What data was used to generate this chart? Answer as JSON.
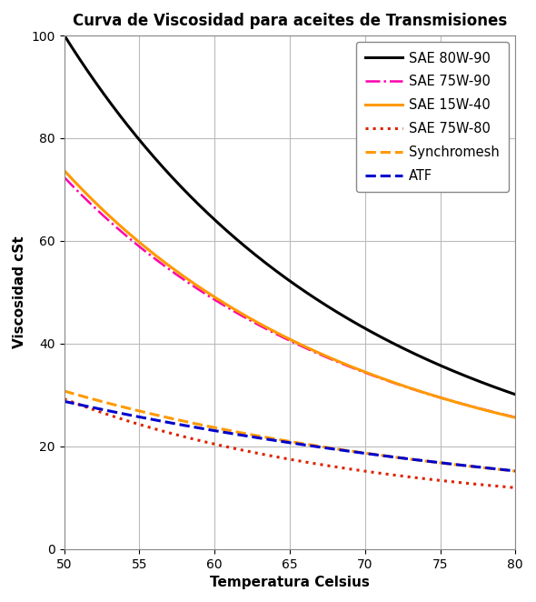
{
  "title": "Curva de Viscosidad para aceites de Transmisiones",
  "xlabel": "Temperatura Celsius",
  "ylabel": "Viscosidad cSt",
  "xlim": [
    50,
    80
  ],
  "ylim": [
    0,
    100
  ],
  "xticks": [
    50,
    55,
    60,
    65,
    70,
    75,
    80
  ],
  "yticks": [
    0,
    20,
    40,
    60,
    80,
    100
  ],
  "temp": [
    50,
    55,
    60,
    65,
    70,
    75,
    80
  ],
  "series": [
    {
      "label": "SAE 80W-90",
      "color": "#000000",
      "linestyle": "solid",
      "linewidth": 2.2,
      "values": [
        100,
        80,
        64,
        52,
        43,
        36,
        30
      ]
    },
    {
      "label": "SAE 75W-90",
      "color": "#ff00aa",
      "linestyle": "dashdot",
      "linewidth": 1.8,
      "values": [
        72,
        59,
        49,
        41,
        34,
        29,
        26
      ]
    },
    {
      "label": "SAE 15W-40",
      "color": "#ff9900",
      "linestyle": "solid",
      "linewidth": 2.2,
      "values": [
        73,
        60,
        50,
        41,
        34,
        29,
        26
      ]
    },
    {
      "label": "SAE 75W-80",
      "color": "#dd2200",
      "linestyle": "dotted",
      "linewidth": 2.2,
      "values": [
        29,
        25,
        20,
        17,
        16,
        13,
        12
      ]
    },
    {
      "label": "Synchromesh",
      "color": "#ff9900",
      "linestyle": "dashed",
      "linewidth": 2.2,
      "values": [
        31,
        27,
        23,
        21,
        19,
        17,
        15
      ]
    },
    {
      "label": "ATF",
      "color": "#0000cc",
      "linestyle": "dashed",
      "linewidth": 2.2,
      "values": [
        29,
        26,
        22,
        21,
        19,
        17,
        15
      ]
    }
  ],
  "background_color": "#ffffff",
  "plot_bg_color": "#ffffff",
  "grid_color": "#bbbbbb",
  "legend_fontsize": 10.5,
  "title_fontsize": 12,
  "axis_label_fontsize": 11,
  "tick_fontsize": 10,
  "figure_size": [
    5.9,
    6.62
  ],
  "dpi": 100
}
